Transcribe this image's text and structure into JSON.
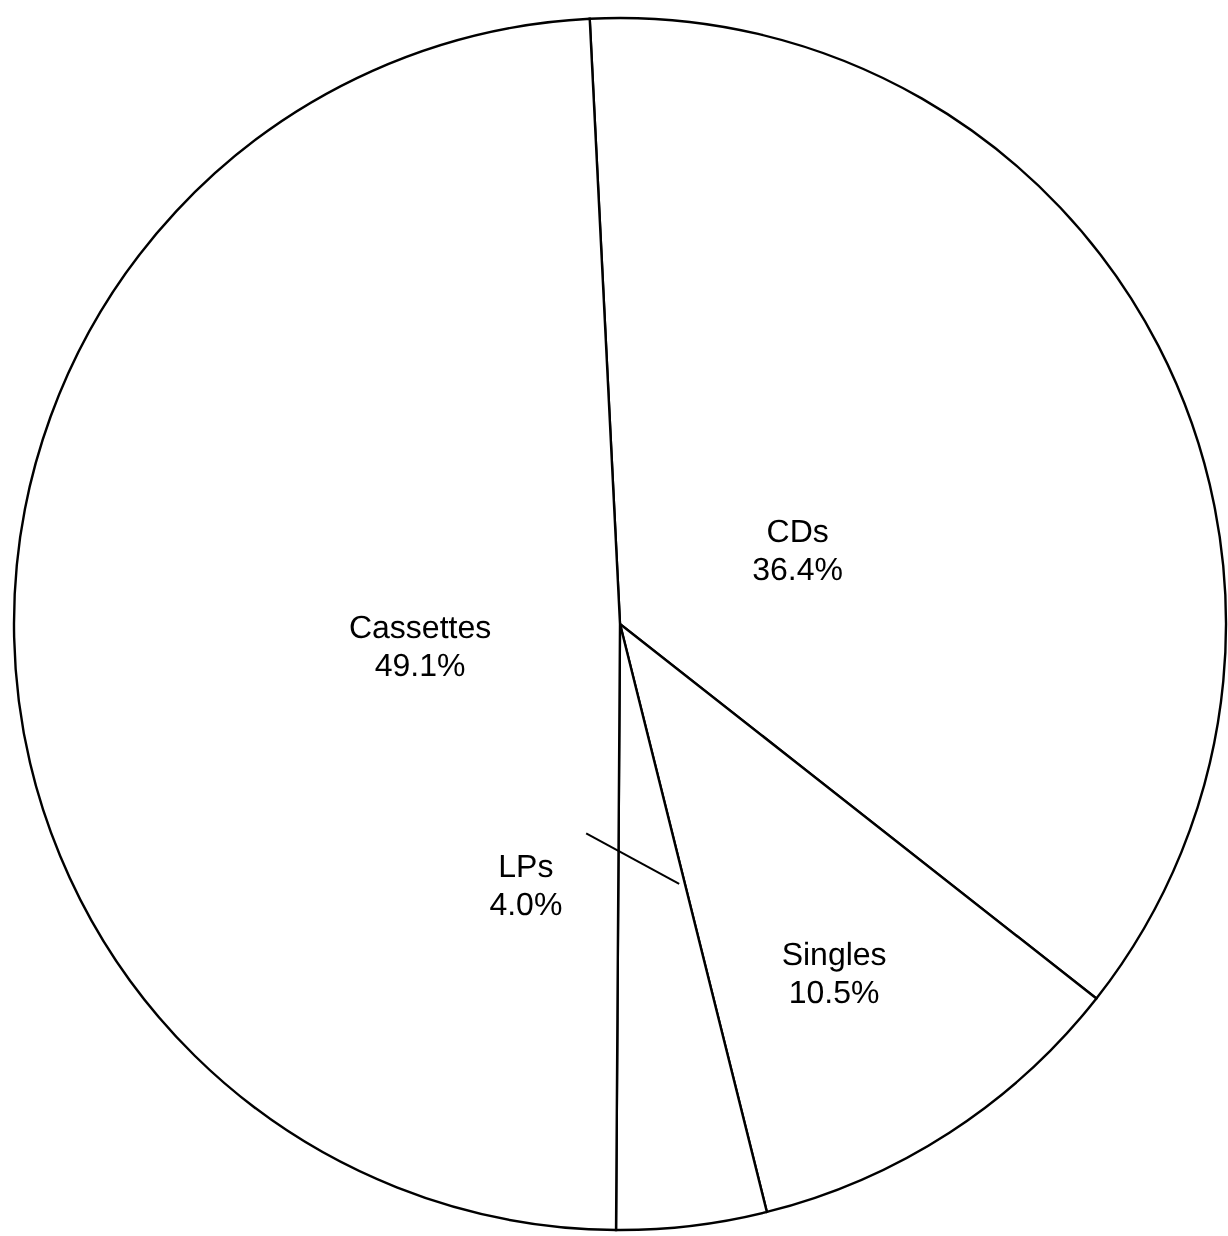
{
  "chart_data": {
    "type": "pie",
    "categories": [
      "CDs",
      "Singles",
      "LPs",
      "Cassettes"
    ],
    "values": [
      36.4,
      10.5,
      4.0,
      49.1
    ],
    "value_labels": [
      "36.4%",
      "10.5%",
      "4.0%",
      "49.1%"
    ],
    "colors": [
      "#ffffff",
      "#ffffff",
      "#ffffff",
      "#ffffff"
    ]
  }
}
